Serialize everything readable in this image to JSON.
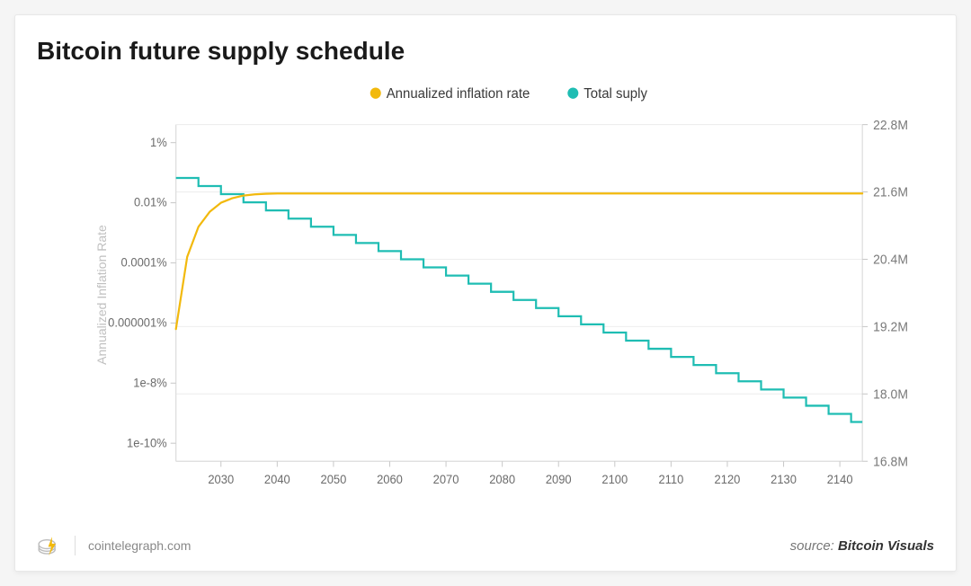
{
  "title": "Bitcoin future supply schedule",
  "legend": {
    "series1": {
      "label": "Annualized inflation rate",
      "color": "#f2b90d"
    },
    "series2": {
      "label": "Total suply",
      "color": "#1fbdb3"
    }
  },
  "y1": {
    "title": "Annualized Inflation Rate",
    "scale": "log",
    "ticks": [
      "1%",
      "0.01%",
      "0.0001%",
      "0.000001%",
      "1e-8%",
      "1e-10%"
    ],
    "tick_exponents": [
      0,
      -2,
      -4,
      -6,
      -8,
      -10
    ],
    "range_exp": [
      -10.6,
      0.6
    ]
  },
  "y2": {
    "scale": "linear",
    "ticks": [
      "22.8M",
      "21.6M",
      "20.4M",
      "19.2M",
      "18.0M",
      "16.8M"
    ],
    "tick_values": [
      22.8,
      21.6,
      20.4,
      19.2,
      18.0,
      16.8
    ],
    "range": [
      16.8,
      22.8
    ]
  },
  "x": {
    "ticks": [
      2030,
      2040,
      2050,
      2060,
      2070,
      2080,
      2090,
      2100,
      2110,
      2120,
      2130,
      2140
    ],
    "range": [
      2022,
      2144
    ]
  },
  "chart": {
    "type": "dual-axis-line",
    "background": "#ffffff",
    "grid_color": "#eeeeee",
    "axis_color": "#dcdcdc",
    "tick_color": "#6b6b6b",
    "line_width_inflation": 2.2,
    "line_width_supply": 2.2,
    "inflation_series": {
      "x": [
        2022,
        2024,
        2026,
        2028,
        2030,
        2032,
        2034,
        2036,
        2038,
        2040,
        2042,
        2044,
        2048,
        2056,
        2072,
        2100,
        2144
      ],
      "y_exp": [
        -6.2,
        -3.8,
        -2.8,
        -2.3,
        -2.0,
        -1.85,
        -1.76,
        -1.72,
        -1.7,
        -1.69,
        -1.69,
        -1.69,
        -1.69,
        -1.69,
        -1.69,
        -1.69,
        -1.69
      ]
    },
    "supply_series": {
      "start_year": 2022,
      "step_years": 4,
      "start_val": 21.85,
      "step_delta": -0.145,
      "steps": 31
    }
  },
  "footer": {
    "site": "cointelegraph.com",
    "source_prefix": "source: ",
    "source_name": "Bitcoin Visuals",
    "logo_colors": {
      "coin": "#bcbcbc",
      "bolt": "#f2b90d"
    }
  },
  "fonts": {
    "title_size": 28,
    "legend_size": 15,
    "tick_size": 13,
    "axis_title_size": 14,
    "footer_size": 14
  }
}
